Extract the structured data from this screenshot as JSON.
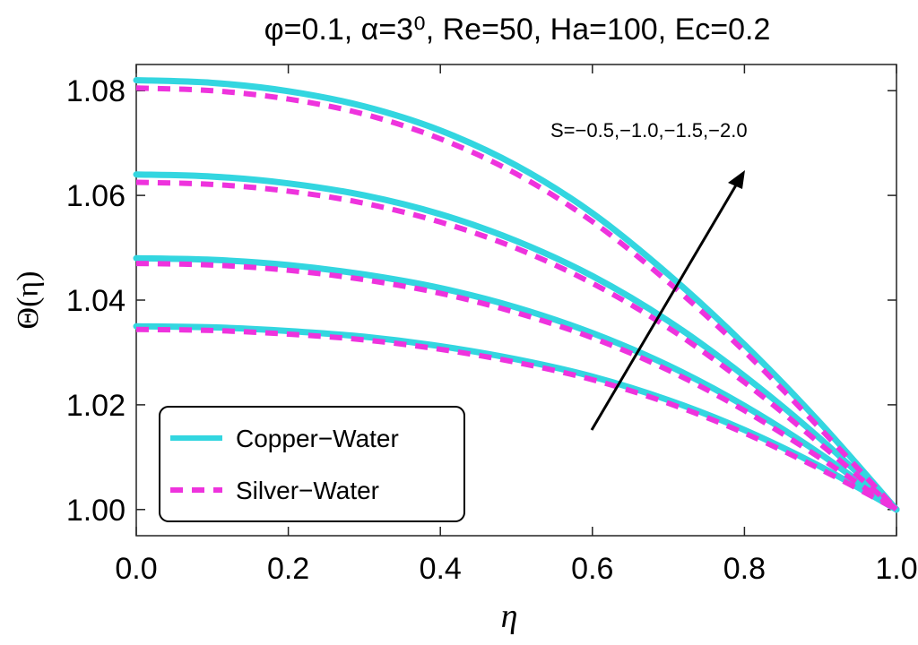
{
  "chart_data": {
    "type": "line",
    "title": "φ=0.1, α=3⁰, Re=50, Ha=100, Ec=0.2",
    "xlabel": "η",
    "ylabel": "Θ(η)",
    "xlim": [
      0,
      1
    ],
    "ylim": [
      0.995,
      1.085
    ],
    "xticks": [
      "0.0",
      "0.2",
      "0.4",
      "0.6",
      "0.8",
      "1.0"
    ],
    "yticks": [
      "1.00",
      "1.02",
      "1.04",
      "1.06",
      "1.08"
    ],
    "xtick_values": [
      0,
      0.2,
      0.4,
      0.6,
      0.8,
      1.0
    ],
    "ytick_values": [
      1.0,
      1.02,
      1.04,
      1.06,
      1.08
    ],
    "annotation": "S=−0.5,−1.0,−1.5,−2.0",
    "legend": [
      {
        "label": "Copper−Water",
        "style": "solid",
        "color": "#33d6e0"
      },
      {
        "label": "Silver−Water",
        "style": "dashed",
        "color": "#ee33dd"
      }
    ],
    "series": [
      {
        "name": "Copper−Water",
        "S": "-0.5",
        "x": [
          0,
          0.1,
          0.2,
          0.3,
          0.4,
          0.5,
          0.6,
          0.7,
          0.8,
          0.9,
          1.0
        ],
        "y": [
          1.035,
          1.0348,
          1.0341,
          1.033,
          1.0312,
          1.0287,
          1.0254,
          1.0209,
          1.0152,
          1.0082,
          1.0
        ]
      },
      {
        "name": "Silver−Water",
        "S": "-0.5",
        "x": [
          0,
          0.1,
          0.2,
          0.3,
          0.4,
          0.5,
          0.6,
          0.7,
          0.8,
          0.9,
          1.0
        ],
        "y": [
          1.0344,
          1.0342,
          1.0335,
          1.0324,
          1.0306,
          1.0281,
          1.0248,
          1.0203,
          1.0146,
          1.0077,
          1.0
        ]
      },
      {
        "name": "Copper−Water",
        "S": "-1.0",
        "x": [
          0,
          0.1,
          0.2,
          0.3,
          0.4,
          0.5,
          0.6,
          0.7,
          0.8,
          0.9,
          1.0
        ],
        "y": [
          1.048,
          1.0477,
          1.0467,
          1.0449,
          1.0423,
          1.0386,
          1.0337,
          1.0275,
          1.0198,
          1.0106,
          1.0
        ]
      },
      {
        "name": "Silver−Water",
        "S": "-1.0",
        "x": [
          0,
          0.1,
          0.2,
          0.3,
          0.4,
          0.5,
          0.6,
          0.7,
          0.8,
          0.9,
          1.0
        ],
        "y": [
          1.047,
          1.0467,
          1.0457,
          1.0439,
          1.0413,
          1.0376,
          1.0328,
          1.0266,
          1.0189,
          1.0098,
          1.0
        ]
      },
      {
        "name": "Copper−Water",
        "S": "-1.5",
        "x": [
          0,
          0.1,
          0.2,
          0.3,
          0.4,
          0.5,
          0.6,
          0.7,
          0.8,
          0.9,
          1.0
        ],
        "y": [
          1.064,
          1.0636,
          1.0623,
          1.06,
          1.0564,
          1.0513,
          1.0446,
          1.036,
          1.0255,
          1.0135,
          1.0
        ]
      },
      {
        "name": "Silver−Water",
        "S": "-1.5",
        "x": [
          0,
          0.1,
          0.2,
          0.3,
          0.4,
          0.5,
          0.6,
          0.7,
          0.8,
          0.9,
          1.0
        ],
        "y": [
          1.0625,
          1.0621,
          1.0608,
          1.0585,
          1.0549,
          1.0499,
          1.0432,
          1.0347,
          1.0243,
          1.0125,
          1.0
        ]
      },
      {
        "name": "Copper−Water",
        "S": "-2.0",
        "x": [
          0,
          0.1,
          0.2,
          0.3,
          0.4,
          0.5,
          0.6,
          0.7,
          0.8,
          0.9,
          1.0
        ],
        "y": [
          1.082,
          1.0815,
          1.0799,
          1.077,
          1.0724,
          1.0657,
          1.0566,
          1.0449,
          1.0315,
          1.0165,
          1.0
        ]
      },
      {
        "name": "Silver−Water",
        "S": "-2.0",
        "x": [
          0,
          0.1,
          0.2,
          0.3,
          0.4,
          0.5,
          0.6,
          0.7,
          0.8,
          0.9,
          1.0
        ],
        "y": [
          1.0805,
          1.08,
          1.0784,
          1.0755,
          1.0708,
          1.0641,
          1.055,
          1.0434,
          1.0302,
          1.0154,
          1.0
        ]
      }
    ]
  }
}
